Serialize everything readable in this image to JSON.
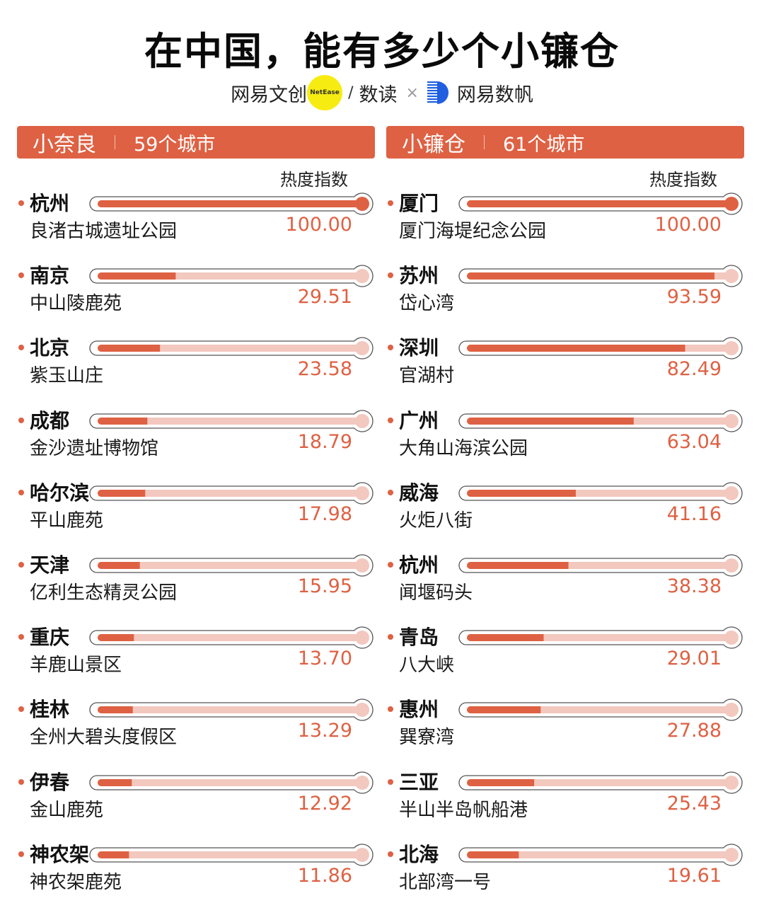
{
  "title": "在中国，能有多少个小镰仓",
  "brand": {
    "left_logo": "网易文创",
    "badge": "NetEase",
    "slash": "/",
    "sub_logo": "数读",
    "times": "×",
    "right_logo": "网易数帆"
  },
  "colors": {
    "accent": "#de6143",
    "track": "#f2c8bf",
    "outline": "#555555"
  },
  "panels": [
    {
      "name": "小奈良",
      "count": "59个城市",
      "index_label": "热度指数",
      "rows": [
        {
          "city": "杭州",
          "place": "良渚古城遗址公园",
          "value": "100.00",
          "pct": 100.0
        },
        {
          "city": "南京",
          "place": "中山陵鹿苑",
          "value": "29.51",
          "pct": 29.51
        },
        {
          "city": "北京",
          "place": "紫玉山庄",
          "value": "23.58",
          "pct": 23.58
        },
        {
          "city": "成都",
          "place": "金沙遗址博物馆",
          "value": "18.79",
          "pct": 18.79
        },
        {
          "city": "哈尔滨",
          "place": "平山鹿苑",
          "value": "17.98",
          "pct": 17.98
        },
        {
          "city": "天津",
          "place": "亿利生态精灵公园",
          "value": "15.95",
          "pct": 15.95
        },
        {
          "city": "重庆",
          "place": "羊鹿山景区",
          "value": "13.70",
          "pct": 13.7
        },
        {
          "city": "桂林",
          "place": "全州大碧头度假区",
          "value": "13.29",
          "pct": 13.29
        },
        {
          "city": "伊春",
          "place": "金山鹿苑",
          "value": "12.92",
          "pct": 12.92
        },
        {
          "city": "神农架",
          "place": "神农架鹿苑",
          "value": "11.86",
          "pct": 11.86
        }
      ]
    },
    {
      "name": "小镰仓",
      "count": "61个城市",
      "index_label": "热度指数",
      "rows": [
        {
          "city": "厦门",
          "place": "厦门海堤纪念公园",
          "value": "100.00",
          "pct": 100.0
        },
        {
          "city": "苏州",
          "place": "岱心湾",
          "value": "93.59",
          "pct": 93.59
        },
        {
          "city": "深圳",
          "place": "官湖村",
          "value": "82.49",
          "pct": 82.49
        },
        {
          "city": "广州",
          "place": "大角山海滨公园",
          "value": "63.04",
          "pct": 63.04
        },
        {
          "city": "威海",
          "place": "火炬八街",
          "value": "41.16",
          "pct": 41.16
        },
        {
          "city": "杭州",
          "place": "闻堰码头",
          "value": "38.38",
          "pct": 38.38
        },
        {
          "city": "青岛",
          "place": "八大峡",
          "value": "29.01",
          "pct": 29.01
        },
        {
          "city": "惠州",
          "place": "巽寮湾",
          "value": "27.88",
          "pct": 27.88
        },
        {
          "city": "三亚",
          "place": "半山半岛帆船港",
          "value": "25.43",
          "pct": 25.43
        },
        {
          "city": "北海",
          "place": "北部湾一号",
          "value": "19.61",
          "pct": 19.61
        }
      ]
    }
  ],
  "chart_data": [
    {
      "type": "bar",
      "title": "小奈良 | 59个城市",
      "ylabel": "热度指数",
      "categories": [
        "杭州·良渚古城遗址公园",
        "南京·中山陵鹿苑",
        "北京·紫玉山庄",
        "成都·金沙遗址博物馆",
        "哈尔滨·平山鹿苑",
        "天津·亿利生态精灵公园",
        "重庆·羊鹿山景区",
        "桂林·全州大碧头度假区",
        "伊春·金山鹿苑",
        "神农架·神农架鹿苑"
      ],
      "values": [
        100.0,
        29.51,
        23.58,
        18.79,
        17.98,
        15.95,
        13.7,
        13.29,
        12.92,
        11.86
      ],
      "xlim": [
        0,
        100
      ],
      "orientation": "horizontal"
    },
    {
      "type": "bar",
      "title": "小镰仓 | 61个城市",
      "ylabel": "热度指数",
      "categories": [
        "厦门·厦门海堤纪念公园",
        "苏州·岱心湾",
        "深圳·官湖村",
        "广州·大角山海滨公园",
        "威海·火炬八街",
        "杭州·闻堰码头",
        "青岛·八大峡",
        "惠州·巽寮湾",
        "三亚·半山半岛帆船港",
        "北海·北部湾一号"
      ],
      "values": [
        100.0,
        93.59,
        82.49,
        63.04,
        41.16,
        38.38,
        29.01,
        27.88,
        25.43,
        19.61
      ],
      "xlim": [
        0,
        100
      ],
      "orientation": "horizontal"
    }
  ]
}
